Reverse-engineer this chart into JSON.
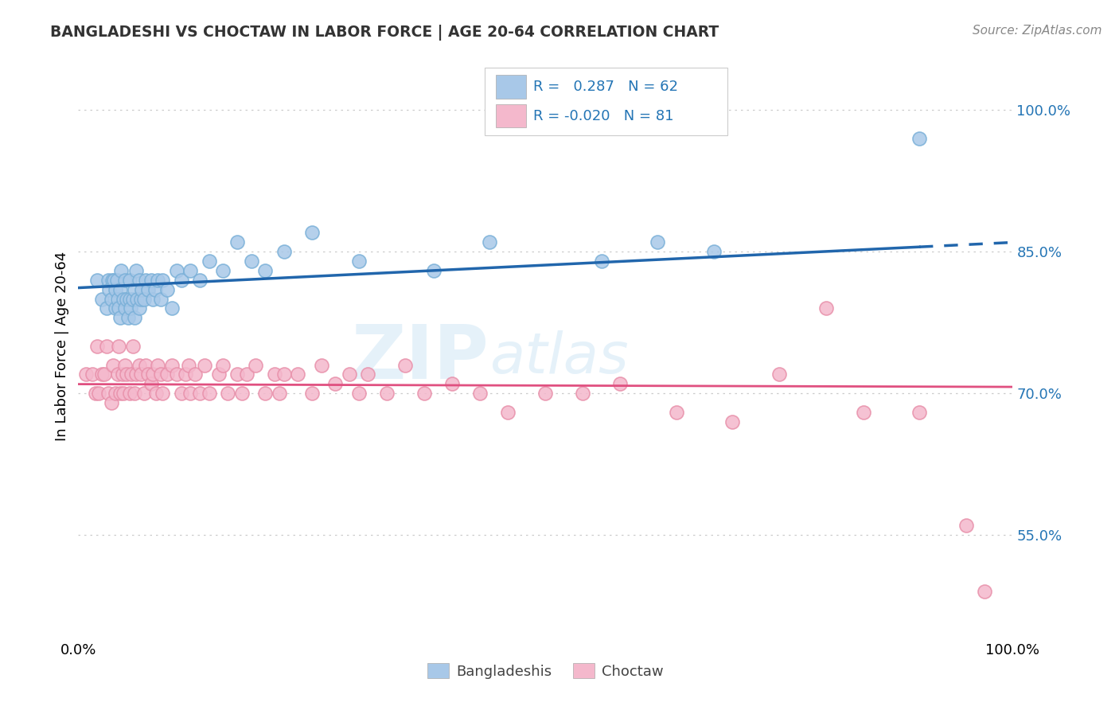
{
  "title": "BANGLADESHI VS CHOCTAW IN LABOR FORCE | AGE 20-64 CORRELATION CHART",
  "source_text": "Source: ZipAtlas.com",
  "ylabel": "In Labor Force | Age 20-64",
  "xlim": [
    0.0,
    1.0
  ],
  "ylim": [
    0.44,
    1.06
  ],
  "ytick_positions": [
    0.55,
    0.7,
    0.85,
    1.0
  ],
  "ytick_labels": [
    "55.0%",
    "70.0%",
    "85.0%",
    "100.0%"
  ],
  "blue_color": "#a8c8e8",
  "blue_edge_color": "#7ab0d8",
  "pink_color": "#f4b8cc",
  "pink_edge_color": "#e890aa",
  "blue_line_color": "#2166ac",
  "pink_line_color": "#e05080",
  "legend_r_blue": "0.287",
  "legend_n_blue": "62",
  "legend_r_pink": "-0.020",
  "legend_n_pink": "81",
  "legend_label_blue": "Bangladeshis",
  "legend_label_pink": "Choctaw",
  "watermark_zip": "ZIP",
  "watermark_atlas": "atlas",
  "blue_r": 0.287,
  "pink_r": -0.02,
  "blue_x": [
    0.02,
    0.025,
    0.03,
    0.032,
    0.033,
    0.035,
    0.036,
    0.038,
    0.04,
    0.04,
    0.041,
    0.042,
    0.043,
    0.045,
    0.045,
    0.046,
    0.048,
    0.05,
    0.05,
    0.052,
    0.053,
    0.055,
    0.055,
    0.056,
    0.058,
    0.06,
    0.06,
    0.062,
    0.063,
    0.065,
    0.065,
    0.067,
    0.068,
    0.07,
    0.072,
    0.075,
    0.078,
    0.08,
    0.082,
    0.085,
    0.088,
    0.09,
    0.095,
    0.1,
    0.105,
    0.11,
    0.12,
    0.13,
    0.14,
    0.155,
    0.17,
    0.185,
    0.2,
    0.22,
    0.25,
    0.3,
    0.38,
    0.44,
    0.56,
    0.62,
    0.68,
    0.9
  ],
  "blue_y": [
    0.82,
    0.8,
    0.79,
    0.82,
    0.81,
    0.8,
    0.82,
    0.82,
    0.79,
    0.81,
    0.82,
    0.8,
    0.79,
    0.78,
    0.81,
    0.83,
    0.8,
    0.79,
    0.82,
    0.8,
    0.78,
    0.8,
    0.82,
    0.79,
    0.8,
    0.78,
    0.81,
    0.83,
    0.8,
    0.79,
    0.82,
    0.8,
    0.81,
    0.8,
    0.82,
    0.81,
    0.82,
    0.8,
    0.81,
    0.82,
    0.8,
    0.82,
    0.81,
    0.79,
    0.83,
    0.82,
    0.83,
    0.82,
    0.84,
    0.83,
    0.86,
    0.84,
    0.83,
    0.85,
    0.87,
    0.84,
    0.83,
    0.86,
    0.84,
    0.86,
    0.85,
    0.97
  ],
  "pink_x": [
    0.008,
    0.015,
    0.018,
    0.02,
    0.022,
    0.025,
    0.028,
    0.03,
    0.032,
    0.035,
    0.037,
    0.04,
    0.042,
    0.043,
    0.045,
    0.047,
    0.048,
    0.05,
    0.052,
    0.055,
    0.057,
    0.058,
    0.06,
    0.062,
    0.065,
    0.067,
    0.07,
    0.072,
    0.075,
    0.078,
    0.08,
    0.083,
    0.085,
    0.088,
    0.09,
    0.095,
    0.1,
    0.105,
    0.11,
    0.115,
    0.118,
    0.12,
    0.125,
    0.13,
    0.135,
    0.14,
    0.15,
    0.155,
    0.16,
    0.17,
    0.175,
    0.18,
    0.19,
    0.2,
    0.21,
    0.215,
    0.22,
    0.235,
    0.25,
    0.26,
    0.275,
    0.29,
    0.3,
    0.31,
    0.33,
    0.35,
    0.37,
    0.4,
    0.43,
    0.46,
    0.5,
    0.54,
    0.58,
    0.64,
    0.7,
    0.75,
    0.8,
    0.84,
    0.9,
    0.95,
    0.97
  ],
  "pink_y": [
    0.72,
    0.72,
    0.7,
    0.75,
    0.7,
    0.72,
    0.72,
    0.75,
    0.7,
    0.69,
    0.73,
    0.7,
    0.72,
    0.75,
    0.7,
    0.72,
    0.7,
    0.73,
    0.72,
    0.7,
    0.72,
    0.75,
    0.7,
    0.72,
    0.73,
    0.72,
    0.7,
    0.73,
    0.72,
    0.71,
    0.72,
    0.7,
    0.73,
    0.72,
    0.7,
    0.72,
    0.73,
    0.72,
    0.7,
    0.72,
    0.73,
    0.7,
    0.72,
    0.7,
    0.73,
    0.7,
    0.72,
    0.73,
    0.7,
    0.72,
    0.7,
    0.72,
    0.73,
    0.7,
    0.72,
    0.7,
    0.72,
    0.72,
    0.7,
    0.73,
    0.71,
    0.72,
    0.7,
    0.72,
    0.7,
    0.73,
    0.7,
    0.71,
    0.7,
    0.68,
    0.7,
    0.7,
    0.71,
    0.68,
    0.67,
    0.72,
    0.79,
    0.68,
    0.68,
    0.56,
    0.49
  ]
}
